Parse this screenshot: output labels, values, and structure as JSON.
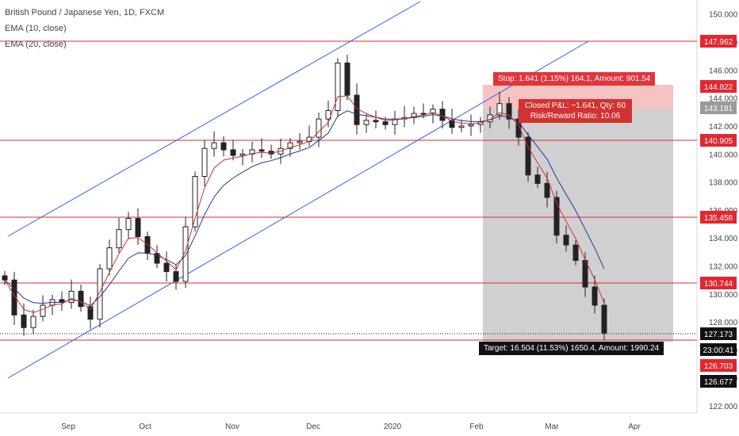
{
  "header": {
    "title": "British Pound / Japanese Yen, 1D, FXCM",
    "indicators": [
      "EMA (10, close)",
      "EMA (20, close)"
    ]
  },
  "position": {
    "stop_label": "Stop: 1.641 (1.15%) 164.1, Amount: 901.54",
    "pnl_label": "Closed P&L: −1.641, Qty: 60",
    "rr_label": "Risk/Reward Ratio: 10.06",
    "target_label": "Target: 16.504 (11.53%) 1650.4, Amount: 1990.24",
    "entry": 143.181,
    "stop": 144.822,
    "target": 126.677,
    "stop_color": "#f4b8b8",
    "target_color": "#c8c8c8"
  },
  "price_labels": [
    {
      "value": "147.962",
      "color": "#e3272f"
    },
    {
      "value": "144.822",
      "color": "#e3272f"
    },
    {
      "value": "143.181",
      "color": "#9a9a9a"
    },
    {
      "value": "140.905",
      "color": "#e3272f"
    },
    {
      "value": "135.458",
      "color": "#e3272f"
    },
    {
      "value": "130.744",
      "color": "#e3272f"
    },
    {
      "value": "127.173",
      "color": "#111111"
    },
    {
      "value": "23:00:41",
      "color": "#111111"
    },
    {
      "value": "126.703",
      "color": "#e3272f"
    },
    {
      "value": "126.677",
      "color": "#111111"
    }
  ],
  "chart_data": {
    "type": "candlestick",
    "instrument": "GBPJPY",
    "ylim": [
      121.5,
      151.0
    ],
    "y_ticks": [
      "122.000",
      "124.000",
      "126.000",
      "128.000",
      "130.000",
      "132.000",
      "134.000",
      "136.000",
      "138.000",
      "140.000",
      "142.000",
      "144.000",
      "146.000",
      "148.000",
      "150.000"
    ],
    "x_ticks": [
      "Sep",
      "Oct",
      "Nov",
      "Dec",
      "2020",
      "Feb",
      "Mar",
      "Apr"
    ],
    "horizontal_levels": [
      147.962,
      140.905,
      135.458,
      130.744,
      126.703
    ],
    "current_price": 127.173,
    "close_series": [
      [
        "Jul 29",
        131.0
      ],
      [
        "Aug 1",
        128.5
      ],
      [
        "Aug 5",
        127.6
      ],
      [
        "Aug 9",
        128.4
      ],
      [
        "Aug 13",
        129.2
      ],
      [
        "Aug 17",
        129.6
      ],
      [
        "Aug 21",
        129.4
      ],
      [
        "Aug 25",
        130.2
      ],
      [
        "Aug 29",
        129.1
      ],
      [
        "Sep 3",
        128.2
      ],
      [
        "Sep 6",
        131.8
      ],
      [
        "Sep 10",
        133.3
      ],
      [
        "Sep 14",
        134.6
      ],
      [
        "Sep 18",
        135.4
      ],
      [
        "Sep 22",
        134.1
      ],
      [
        "Sep 26",
        132.9
      ],
      [
        "Sep 30",
        132.2
      ],
      [
        "Oct 4",
        131.6
      ],
      [
        "Oct 8",
        130.9
      ],
      [
        "Oct 11",
        134.8
      ],
      [
        "Oct 15",
        138.4
      ],
      [
        "Oct 18",
        140.4
      ],
      [
        "Oct 22",
        140.8
      ],
      [
        "Oct 26",
        140.3
      ],
      [
        "Oct 30",
        139.9
      ],
      [
        "Nov 4",
        140.0
      ],
      [
        "Nov 8",
        140.3
      ],
      [
        "Nov 12",
        140.2
      ],
      [
        "Nov 16",
        140.0
      ],
      [
        "Nov 20",
        140.4
      ],
      [
        "Nov 24",
        140.8
      ],
      [
        "Nov 28",
        140.9
      ],
      [
        "Dec 2",
        141.2
      ],
      [
        "Dec 5",
        142.5
      ],
      [
        "Dec 9",
        143.1
      ],
      [
        "Dec 13",
        146.5
      ],
      [
        "Dec 17",
        144.2
      ],
      [
        "Dec 21",
        142.1
      ],
      [
        "Dec 25",
        142.4
      ],
      [
        "Dec 29",
        142.3
      ],
      [
        "Jan 2",
        142.1
      ],
      [
        "Jan 6",
        142.5
      ],
      [
        "Jan 10",
        142.6
      ],
      [
        "Jan 14",
        142.9
      ],
      [
        "Jan 18",
        142.9
      ],
      [
        "Jan 22",
        143.2
      ],
      [
        "Jan 26",
        142.4
      ],
      [
        "Jan 30",
        141.9
      ],
      [
        "Feb 3",
        142.0
      ],
      [
        "Feb 7",
        142.1
      ],
      [
        "Feb 11",
        142.3
      ],
      [
        "Feb 15",
        142.8
      ],
      [
        "Feb 19",
        143.6
      ],
      [
        "Feb 23",
        142.5
      ],
      [
        "Feb 26",
        141.2
      ],
      [
        "Feb 28",
        138.5
      ],
      [
        "Mar 3",
        137.9
      ],
      [
        "Mar 6",
        136.9
      ],
      [
        "Mar 9",
        134.2
      ],
      [
        "Mar 12",
        133.5
      ],
      [
        "Mar 14",
        132.4
      ],
      [
        "Mar 16",
        130.5
      ],
      [
        "Mar 18",
        129.2
      ],
      [
        "Mar 20",
        127.2
      ]
    ],
    "ema_10_color": "#d32f2f",
    "ema_20_color": "#283593",
    "channel_color": "#2962ff"
  }
}
